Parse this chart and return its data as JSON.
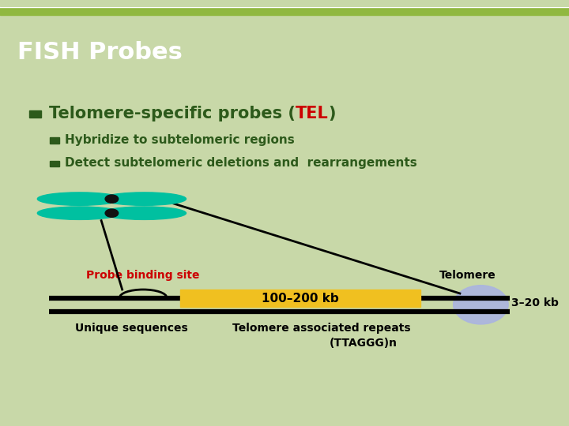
{
  "title": "FISH Probes",
  "title_bg": "#4a7c2f",
  "title_color": "#ffffff",
  "slide_bg": "#c8d8a8",
  "content_bg": "#f2f2ec",
  "bullet_color": "#2d5a1b",
  "tel_color": "#cc0000",
  "probe_label": "Probe binding site",
  "probe_label_color": "#cc0000",
  "telomere_label": "Telomere",
  "kb1_label": "100–200 kb",
  "kb2_label": "3–20 kb",
  "unique_label": "Unique sequences",
  "repeat_label": "Telomere associated repeats",
  "ttaggg_label": "(TTAGGG)n",
  "chromosome_color": "#000000",
  "telomere_region_color": "#f0c020",
  "telomere_oval_color": "#aab4e0",
  "probe_color": "#00c0a0",
  "probe_dot_color": "#111111",
  "border_color": "#8aaa60"
}
